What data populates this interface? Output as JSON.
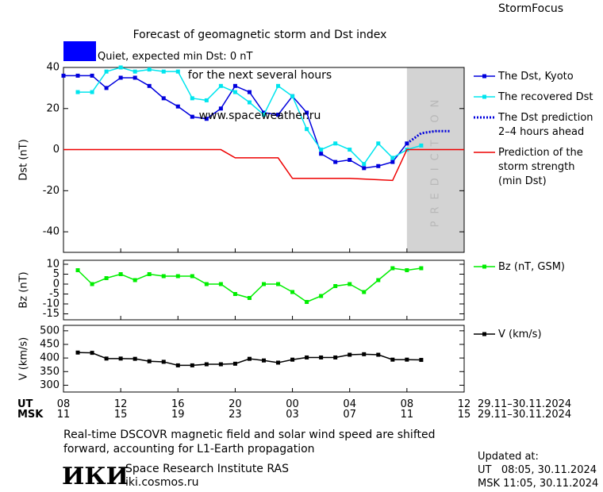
{
  "header": {
    "title_lines": [
      "Forecast of geomagnetic storm and Dst index",
      "for the next several hours",
      "www.spaceweather.ru"
    ],
    "brand": "StormFocus"
  },
  "status": {
    "label": "Quiet, expected min Dst: 0 nT",
    "color": "#0000ff"
  },
  "chart_data": [
    {
      "type": "line",
      "ylabel": "Dst (nT)",
      "xlim": [
        0,
        28
      ],
      "ylim": [
        -50,
        40
      ],
      "yticks": [
        -40,
        -20,
        0,
        20,
        40
      ],
      "shade": {
        "xlim": [
          24,
          28
        ],
        "color": "#d3d3d3",
        "label": "PREDICTION"
      },
      "series": [
        {
          "name": "The Dst, Kyoto",
          "color": "#0000dd",
          "marker": "square",
          "x": [
            0,
            1,
            2,
            3,
            4,
            5,
            6,
            7,
            8,
            9,
            10,
            11,
            12,
            13,
            14,
            15,
            16,
            17,
            18,
            19,
            20,
            21,
            22,
            23,
            24
          ],
          "values": [
            36,
            36,
            36,
            30,
            35,
            35,
            31,
            25,
            21,
            16,
            15,
            20,
            31,
            28,
            18,
            17,
            26,
            18,
            -2,
            -6,
            -5,
            -9,
            -8,
            -6,
            3
          ]
        },
        {
          "name": "The recovered Dst",
          "color": "#00e5ee",
          "marker": "square",
          "x": [
            1,
            2,
            3,
            4,
            5,
            6,
            7,
            8,
            9,
            10,
            11,
            12,
            13,
            14,
            15,
            16,
            17,
            18,
            19,
            20,
            21,
            22,
            23,
            24,
            25
          ],
          "values": [
            28,
            28,
            38,
            40,
            38,
            39,
            38,
            38,
            25,
            24,
            31,
            28,
            23,
            17,
            31,
            26,
            10,
            0,
            3,
            0,
            -7,
            3,
            -4,
            0,
            2
          ]
        },
        {
          "name": "The Dst prediction\n2–4 hours ahead",
          "color": "#0000dd",
          "dashed": true,
          "x": [
            24,
            25,
            26,
            27
          ],
          "values": [
            3,
            8,
            9,
            9
          ]
        },
        {
          "name": "Prediction of the\nstorm strength\n(min Dst)",
          "color": "#ee0000",
          "x": [
            0,
            11,
            12,
            15,
            16,
            20,
            23,
            24,
            28
          ],
          "values": [
            0,
            0,
            -4,
            -4,
            -14,
            -14,
            -15,
            0,
            0
          ]
        }
      ]
    },
    {
      "type": "line",
      "ylabel": "Bz (nT)",
      "xlim": [
        0,
        28
      ],
      "ylim": [
        -18,
        12
      ],
      "yticks": [
        -15,
        -10,
        -5,
        0,
        5,
        10
      ],
      "series": [
        {
          "name": "Bz (nT, GSM)",
          "color": "#00ee00",
          "marker": "square",
          "x": [
            1,
            2,
            3,
            4,
            5,
            6,
            7,
            8,
            9,
            10,
            11,
            12,
            13,
            14,
            15,
            16,
            17,
            18,
            19,
            20,
            21,
            22,
            23,
            24,
            25
          ],
          "values": [
            7,
            0,
            3,
            5,
            2,
            5,
            4,
            4,
            4,
            0,
            0,
            -5,
            -7,
            0,
            0,
            -4,
            -9,
            -6,
            -1,
            0,
            -4,
            2,
            8,
            7,
            8
          ]
        }
      ]
    },
    {
      "type": "line",
      "ylabel": "V (km/s)",
      "xlim": [
        0,
        28
      ],
      "ylim": [
        275,
        520
      ],
      "yticks": [
        300,
        350,
        400,
        450,
        500
      ],
      "series": [
        {
          "name": "V (km/s)",
          "color": "#000000",
          "marker": "square",
          "x": [
            1,
            2,
            3,
            4,
            5,
            6,
            7,
            8,
            9,
            10,
            11,
            12,
            13,
            14,
            15,
            16,
            17,
            18,
            19,
            20,
            21,
            22,
            23,
            24,
            25
          ],
          "values": [
            420,
            419,
            398,
            398,
            397,
            388,
            386,
            373,
            373,
            377,
            377,
            379,
            397,
            391,
            383,
            394,
            402,
            402,
            402,
            412,
            414,
            412,
            394,
            394,
            393
          ]
        }
      ],
      "x_axis_rows": [
        {
          "label": "UT",
          "range": "29.11–30.11.2024",
          "xticks": [
            {
              "value": 0,
              "label": "08"
            },
            {
              "value": 4,
              "label": "12"
            },
            {
              "value": 8,
              "label": "16"
            },
            {
              "value": 12,
              "label": "20"
            },
            {
              "value": 16,
              "label": "00"
            },
            {
              "value": 20,
              "label": "04"
            },
            {
              "value": 24,
              "label": "08"
            },
            {
              "value": 28,
              "label": "12"
            }
          ]
        },
        {
          "label": "MSK",
          "range": "29.11–30.11.2024",
          "xticks": [
            {
              "value": 0,
              "label": "11"
            },
            {
              "value": 4,
              "label": "15"
            },
            {
              "value": 8,
              "label": "19"
            },
            {
              "value": 12,
              "label": "23"
            },
            {
              "value": 16,
              "label": "03"
            },
            {
              "value": 20,
              "label": "07"
            },
            {
              "value": 24,
              "label": "11"
            },
            {
              "value": 28,
              "label": "15"
            }
          ]
        }
      ]
    }
  ],
  "footer": {
    "note": "Real-time DSCOVR magnetic field and solar wind speed are shifted\nforward, accounting for L1-Earth propagation",
    "logo": "ИКИ",
    "institute": "Space Research Institute RAS",
    "site": "iki.cosmos.ru",
    "updated": [
      "Updated at:",
      "UT   08:05, 30.11.2024",
      "MSK 11:05, 30.11.2024"
    ]
  }
}
